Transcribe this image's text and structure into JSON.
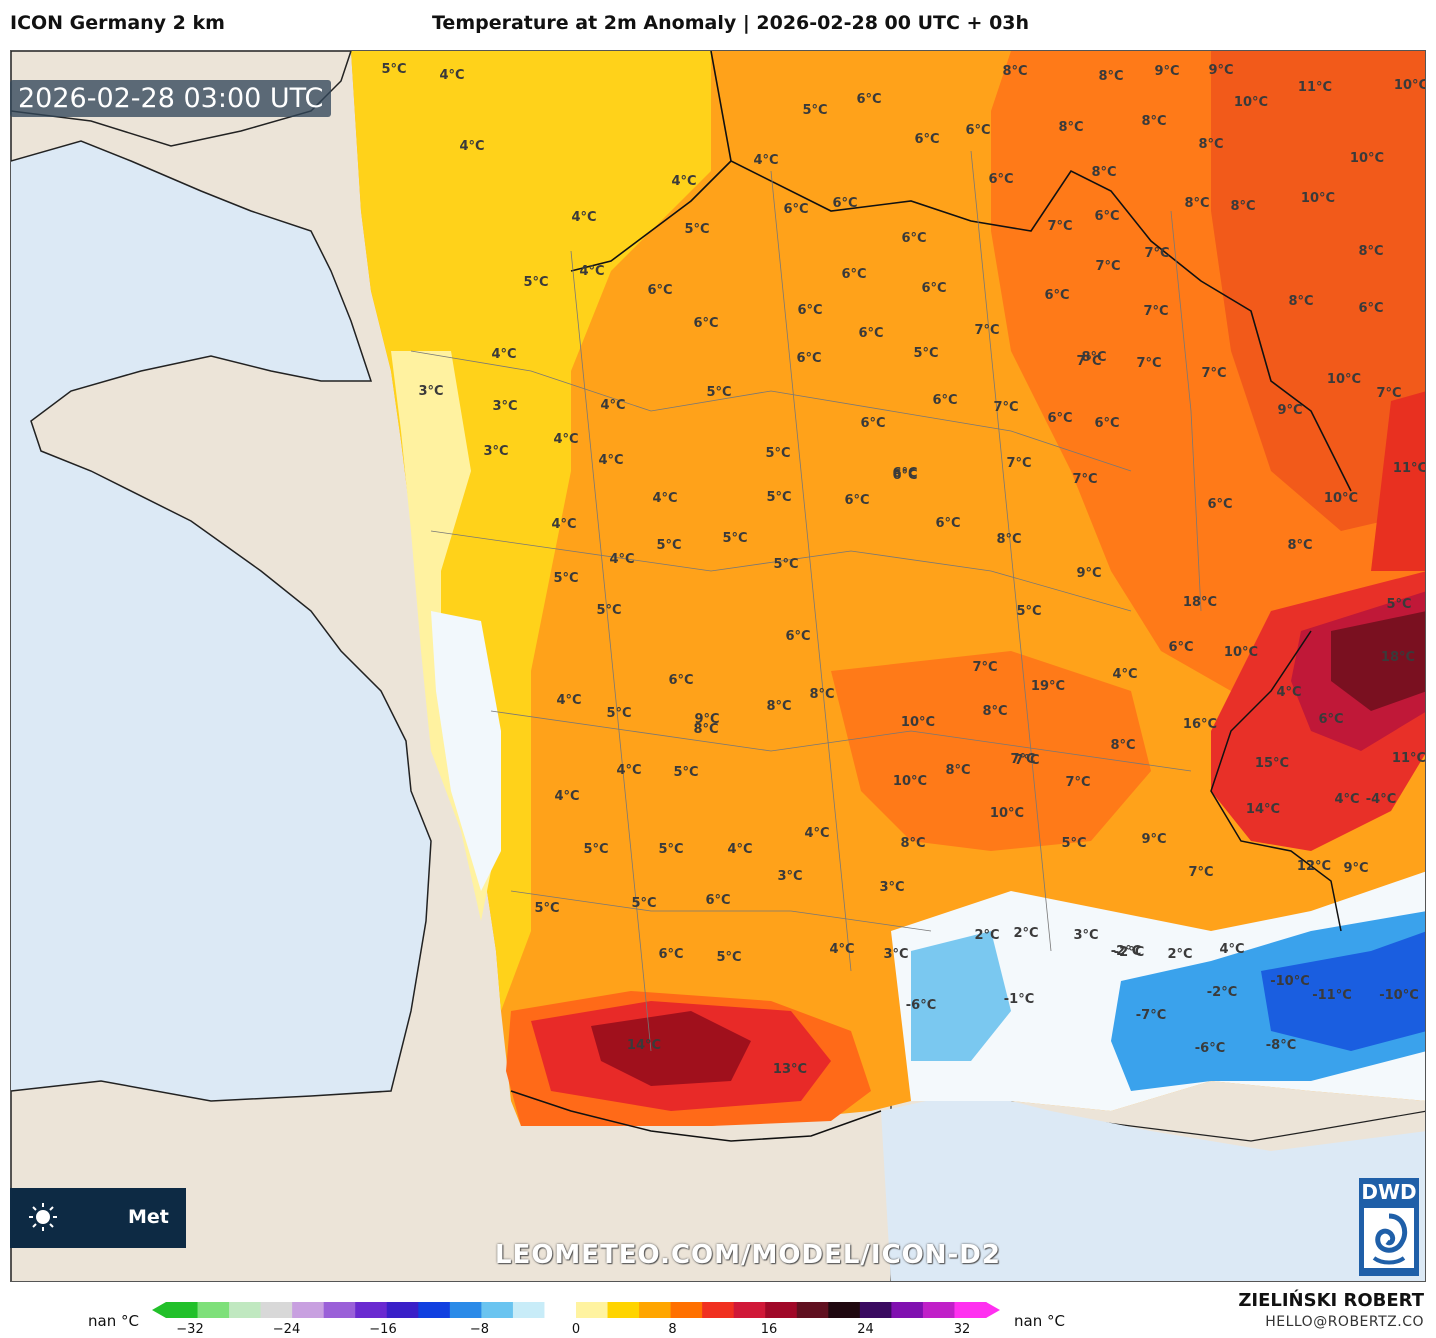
{
  "header": {
    "model": "ICON Germany 2 km",
    "title": "Temperature at 2m Anomaly | 2026-02-28 00 UTC + 03h"
  },
  "map": {
    "valid_time": "2026-02-28 03:00 UTC",
    "watermark": "LEOMETEO.COM/MODEL/ICON-D2",
    "logo_text": "Met",
    "labels": [
      {
        "text": "5°C"
      },
      {
        "text": "4°C"
      },
      {
        "text": "4°C"
      },
      {
        "text": "5°C"
      },
      {
        "text": "6°C"
      },
      {
        "text": "8°C"
      },
      {
        "text": "8°C"
      },
      {
        "text": "9°C"
      },
      {
        "text": "9°C"
      },
      {
        "text": "11°C"
      },
      {
        "text": "10°C"
      },
      {
        "text": "10°C"
      },
      {
        "text": "6°C"
      },
      {
        "text": "6°C"
      },
      {
        "text": "8°C"
      },
      {
        "text": "8°C"
      },
      {
        "text": "8°C"
      },
      {
        "text": "10°C"
      },
      {
        "text": "4°C"
      },
      {
        "text": "6°C"
      },
      {
        "text": "8°C"
      },
      {
        "text": "10°C"
      },
      {
        "text": "4°C"
      },
      {
        "text": "6°C"
      },
      {
        "text": "6°C"
      },
      {
        "text": "6°C"
      },
      {
        "text": "7°C"
      },
      {
        "text": "6°C"
      },
      {
        "text": "8°C"
      },
      {
        "text": "8°C"
      },
      {
        "text": "4°C"
      },
      {
        "text": "5°C"
      },
      {
        "text": "6°C"
      },
      {
        "text": "7°C"
      },
      {
        "text": "7°C"
      },
      {
        "text": "8°C"
      },
      {
        "text": "4°C"
      },
      {
        "text": "5°C"
      },
      {
        "text": "6°C"
      },
      {
        "text": "6°C"
      },
      {
        "text": "6°C"
      },
      {
        "text": "6°C"
      },
      {
        "text": "8°C"
      },
      {
        "text": "6°C"
      },
      {
        "text": "6°C"
      },
      {
        "text": "7°C"
      },
      {
        "text": "7°C"
      },
      {
        "text": "8°C"
      },
      {
        "text": "6°C"
      },
      {
        "text": "4°C"
      },
      {
        "text": "6°C"
      },
      {
        "text": "6°C"
      },
      {
        "text": "5°C"
      },
      {
        "text": "7°C"
      },
      {
        "text": "7°C"
      },
      {
        "text": "7°C"
      },
      {
        "text": "10°C"
      },
      {
        "text": "7°C"
      },
      {
        "text": "3°C"
      },
      {
        "text": "3°C"
      },
      {
        "text": "4°C"
      },
      {
        "text": "5°C"
      },
      {
        "text": "6°C"
      },
      {
        "text": "6°C"
      },
      {
        "text": "7°C"
      },
      {
        "text": "6°C"
      },
      {
        "text": "6°C"
      },
      {
        "text": "9°C"
      },
      {
        "text": "4°C"
      },
      {
        "text": "3°C"
      },
      {
        "text": "4°C"
      },
      {
        "text": "5°C"
      },
      {
        "text": "7°C"
      },
      {
        "text": "7°C"
      },
      {
        "text": "11°C"
      },
      {
        "text": "4°C"
      },
      {
        "text": "5°C"
      },
      {
        "text": "6°C"
      },
      {
        "text": "6°C"
      },
      {
        "text": "10°C"
      },
      {
        "text": "4°C"
      },
      {
        "text": "5°C"
      },
      {
        "text": "6°C"
      },
      {
        "text": "6°C"
      },
      {
        "text": "4°C"
      },
      {
        "text": "5°C"
      },
      {
        "text": "5°C"
      },
      {
        "text": "8°C"
      },
      {
        "text": "8°C"
      },
      {
        "text": "5°C"
      },
      {
        "text": "5°C"
      },
      {
        "text": "6°C"
      },
      {
        "text": "5°C"
      },
      {
        "text": "9°C"
      },
      {
        "text": "18°C"
      },
      {
        "text": "5°C"
      },
      {
        "text": "6°C"
      },
      {
        "text": "6°C"
      },
      {
        "text": "7°C"
      },
      {
        "text": "10°C"
      },
      {
        "text": "18°C"
      },
      {
        "text": "4°C"
      },
      {
        "text": "5°C"
      },
      {
        "text": "8°C"
      },
      {
        "text": "8°C"
      },
      {
        "text": "8°C"
      },
      {
        "text": "19°C"
      },
      {
        "text": "4°C"
      },
      {
        "text": "4°C"
      },
      {
        "text": "6°C"
      },
      {
        "text": "9°C"
      },
      {
        "text": "8°C"
      },
      {
        "text": "10°C"
      },
      {
        "text": "16°C"
      },
      {
        "text": "4°C"
      },
      {
        "text": "5°C"
      },
      {
        "text": "8°C"
      },
      {
        "text": "7°C"
      },
      {
        "text": "15°C"
      },
      {
        "text": "11°C"
      },
      {
        "text": "4°C"
      },
      {
        "text": "10°C"
      },
      {
        "text": "7°C"
      },
      {
        "text": "8°C"
      },
      {
        "text": "7°C"
      },
      {
        "text": "10°C"
      },
      {
        "text": "4°C"
      },
      {
        "text": "14°C"
      },
      {
        "text": "4°C"
      },
      {
        "text": "5°C"
      },
      {
        "text": "5°C"
      },
      {
        "text": "4°C"
      },
      {
        "text": "8°C"
      },
      {
        "text": "5°C"
      },
      {
        "text": "9°C"
      },
      {
        "text": "7°C"
      },
      {
        "text": "12°C"
      },
      {
        "text": "9°C"
      },
      {
        "text": "3°C"
      },
      {
        "text": "3°C"
      },
      {
        "text": "5°C"
      },
      {
        "text": "5°C"
      },
      {
        "text": "6°C"
      },
      {
        "text": "2°C"
      },
      {
        "text": "2°C"
      },
      {
        "text": "3°C"
      },
      {
        "text": "-2°C"
      },
      {
        "text": "2°C"
      },
      {
        "text": "4°C"
      },
      {
        "text": "6°C"
      },
      {
        "text": "5°C"
      },
      {
        "text": "4°C"
      },
      {
        "text": "3°C"
      },
      {
        "text": "-10°C"
      },
      {
        "text": "-11°C"
      },
      {
        "text": "-10°C"
      },
      {
        "text": "-6°C"
      },
      {
        "text": "-1°C"
      },
      {
        "text": "-2°C"
      },
      {
        "text": "-7°C"
      },
      {
        "text": "-6°C"
      },
      {
        "text": "-8°C"
      },
      {
        "text": "14°C"
      },
      {
        "text": "13°C"
      },
      {
        "text": "-4°C"
      },
      {
        "text": "-2°C"
      }
    ]
  },
  "legend": {
    "nan_left": "nan °C",
    "nan_right": "nan °C",
    "ticks": [
      "−32",
      "−24",
      "−16",
      "−8",
      "0",
      "8",
      "16",
      "24",
      "32"
    ],
    "colors": [
      "#22c02a",
      "#7ee07a",
      "#c0e8c0",
      "#d8d8d8",
      "#c8a0e0",
      "#9a60d8",
      "#6a2ad0",
      "#3a20c8",
      "#1040e0",
      "#2a8ae8",
      "#6ac4f0",
      "#c8ecf8",
      "#ffffff",
      "#fff3a0",
      "#ffd400",
      "#ffa500",
      "#ff7000",
      "#f03020",
      "#d01838",
      "#a00828",
      "#601020",
      "#200810",
      "#3a0a60",
      "#8010b0",
      "#c020c8",
      "#ff30f0"
    ]
  },
  "credits": {
    "author": "ZIELIŃSKI ROBERT",
    "email": "HELLO@ROBERTZ.CO",
    "dwd": "DWD"
  }
}
